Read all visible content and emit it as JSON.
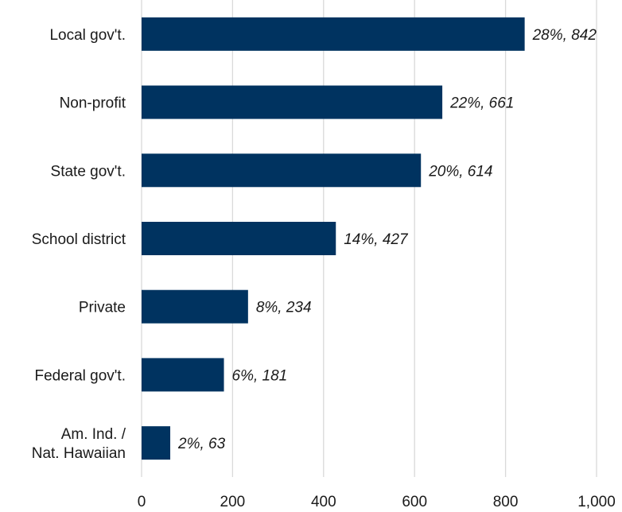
{
  "chart_data": {
    "type": "bar",
    "orientation": "horizontal",
    "categories": [
      "Local gov't.",
      "Non-profit",
      "State gov't.",
      "School district",
      "Private",
      "Federal gov't.",
      "Am. Ind. /\nNat. Hawaiian"
    ],
    "values": [
      842,
      661,
      614,
      427,
      234,
      181,
      63
    ],
    "data_labels": [
      "28%, 842",
      "22%, 661",
      "20%, 614",
      "14%, 427",
      "8%, 234",
      "6%, 181",
      "2%, 63"
    ],
    "x_ticks": [
      "0",
      "200",
      "400",
      "600",
      "800",
      "1,000"
    ],
    "xlim": [
      0,
      1000
    ],
    "title": "",
    "xlabel": "",
    "ylabel": "",
    "grid": "vertical",
    "legend": "none",
    "bar_color": "#003360"
  }
}
